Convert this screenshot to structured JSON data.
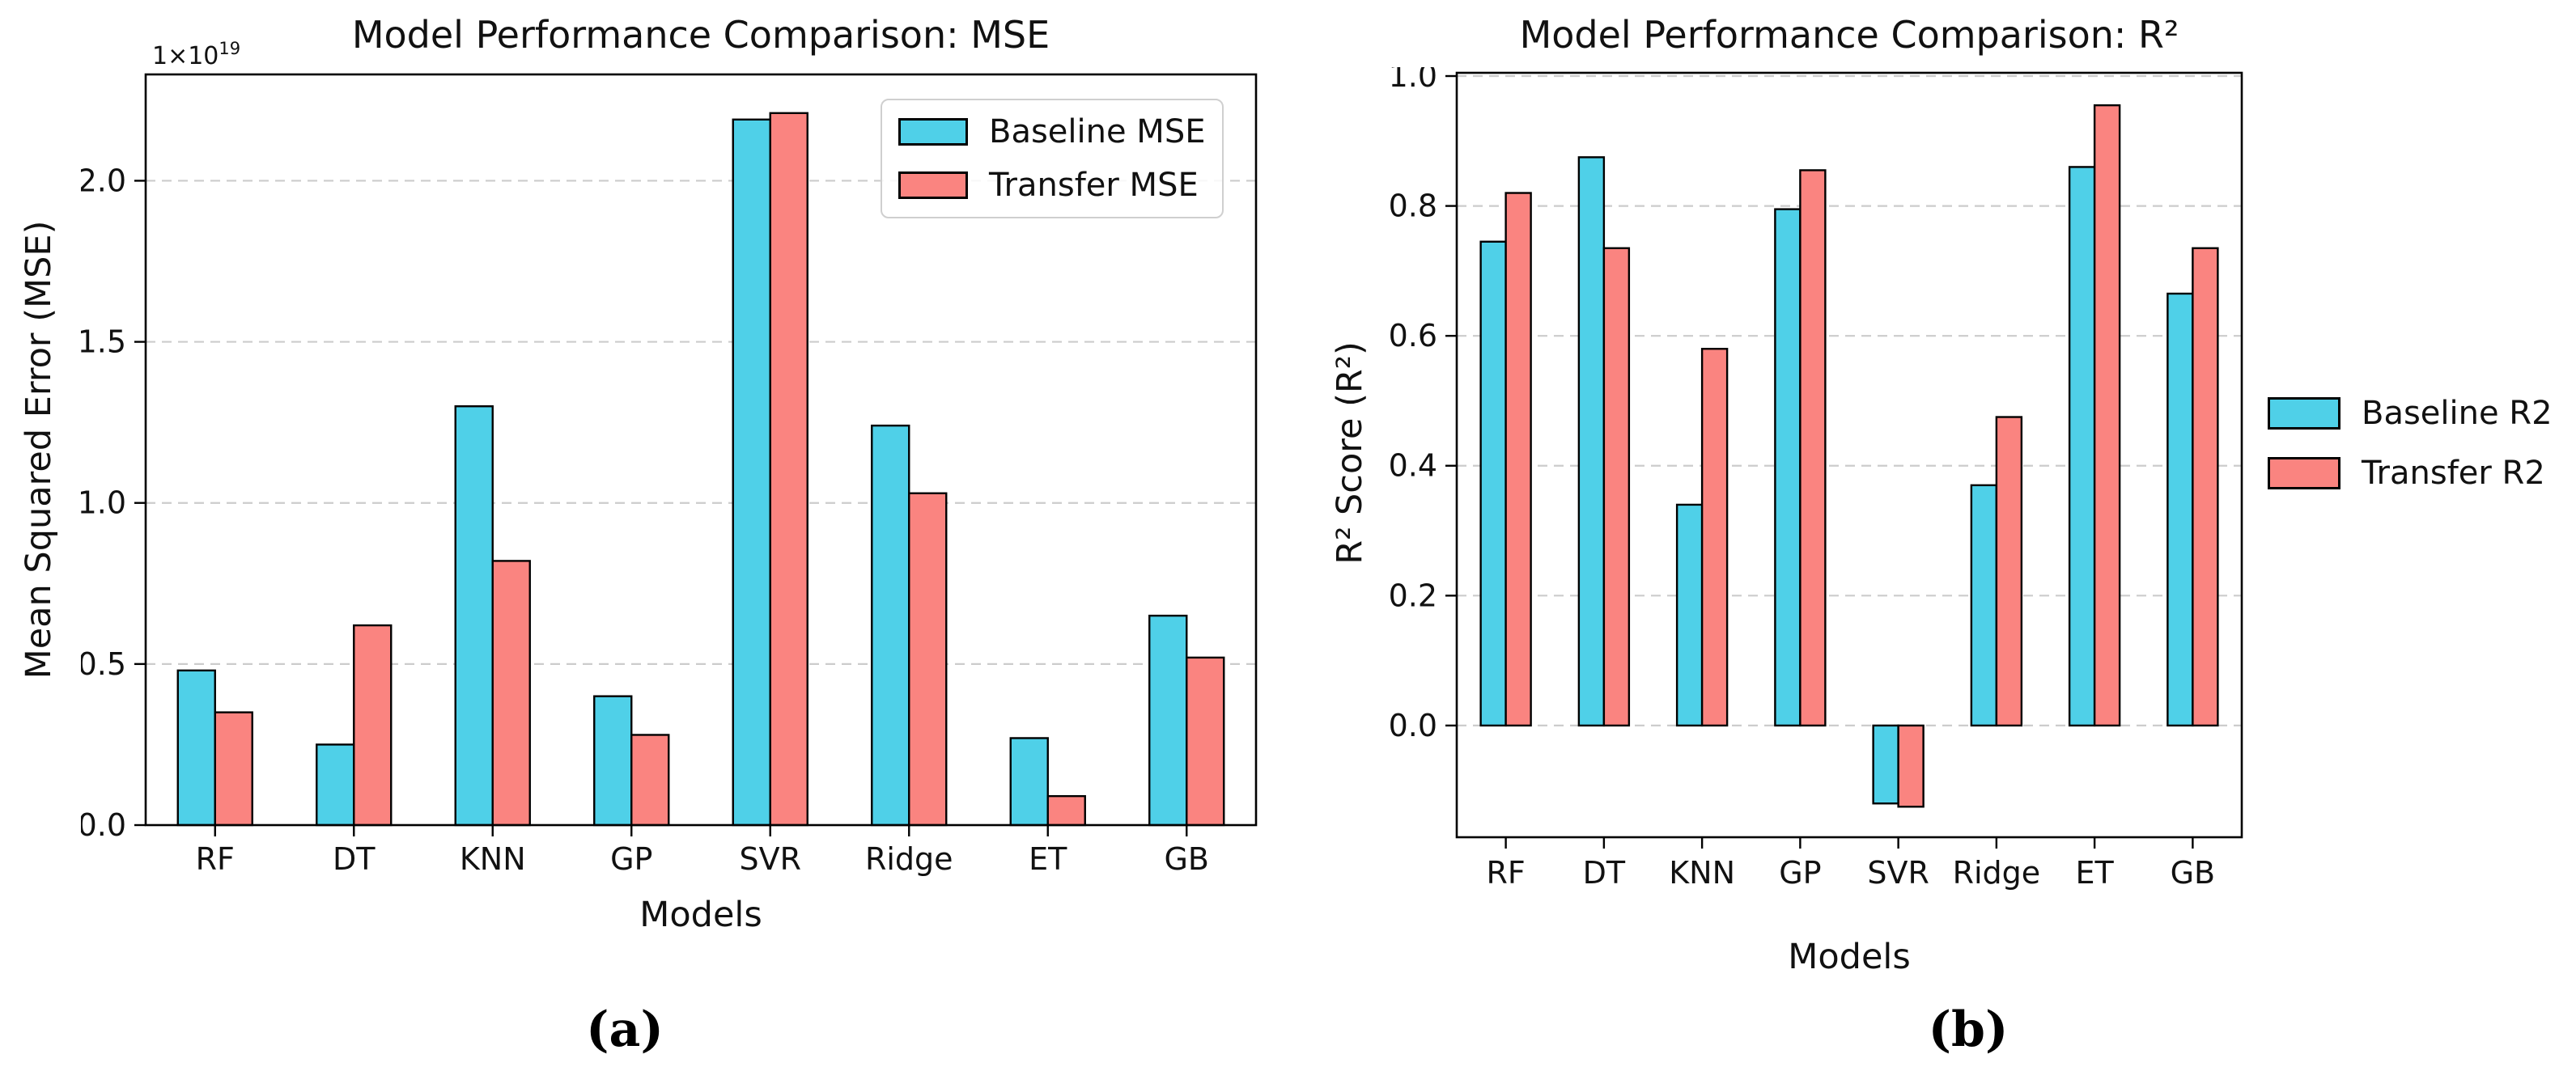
{
  "figure": {
    "background": "#ffffff"
  },
  "colors": {
    "baseline": "#4FD0E8",
    "transfer": "#FA8480",
    "bar_edge": "#000000",
    "grid": "#cccccc",
    "axis": "#000000",
    "text": "#111111",
    "legend_frame": "#cfcfcf"
  },
  "chart_data": [
    {
      "id": "mse",
      "type": "bar",
      "title": "Model Performance Comparison: MSE",
      "xlabel": "Models",
      "ylabel": "Mean Squared Error (MSE)",
      "offset_text": {
        "base": "1×10",
        "exponent": "19"
      },
      "value_scale_note": "bar values are in units of 1×10¹⁹",
      "categories": [
        "RF",
        "DT",
        "KNN",
        "GP",
        "SVR",
        "Ridge",
        "ET",
        "GB"
      ],
      "series": [
        {
          "name": "Baseline MSE",
          "color": "#4FD0E8",
          "values": [
            0.48,
            0.25,
            1.3,
            0.4,
            2.19,
            1.24,
            0.27,
            0.65
          ]
        },
        {
          "name": "Transfer MSE",
          "color": "#FA8480",
          "values": [
            0.35,
            0.62,
            0.82,
            0.28,
            2.21,
            1.03,
            0.09,
            0.52
          ]
        }
      ],
      "yticks": [
        0.0,
        0.5,
        1.0,
        1.5,
        2.0
      ],
      "ylim": [
        0,
        2.33
      ],
      "grid": true,
      "grid_style": "dashed",
      "legend": {
        "position": "upper-right-inside",
        "framed": true
      },
      "caption": "(a)"
    },
    {
      "id": "r2",
      "type": "bar",
      "title": "Model Performance Comparison: R²",
      "xlabel": "Models",
      "ylabel": "R² Score (R²)",
      "categories": [
        "RF",
        "DT",
        "KNN",
        "GP",
        "SVR",
        "Ridge",
        "ET",
        "GB"
      ],
      "series": [
        {
          "name": "Baseline R2",
          "color": "#4FD0E8",
          "values": [
            0.745,
            0.875,
            0.34,
            0.795,
            -0.12,
            0.37,
            0.86,
            0.665
          ]
        },
        {
          "name": "Transfer R2",
          "color": "#FA8480",
          "values": [
            0.82,
            0.735,
            0.58,
            0.855,
            -0.125,
            0.475,
            0.955,
            0.735
          ]
        }
      ],
      "yticks": [
        0.0,
        0.2,
        0.4,
        0.6,
        0.8,
        1.0
      ],
      "ylim": [
        -0.172,
        1.005
      ],
      "grid": true,
      "grid_style": "dashed",
      "legend": {
        "position": "center-right-outside",
        "framed": false
      },
      "caption": "(b)"
    }
  ]
}
